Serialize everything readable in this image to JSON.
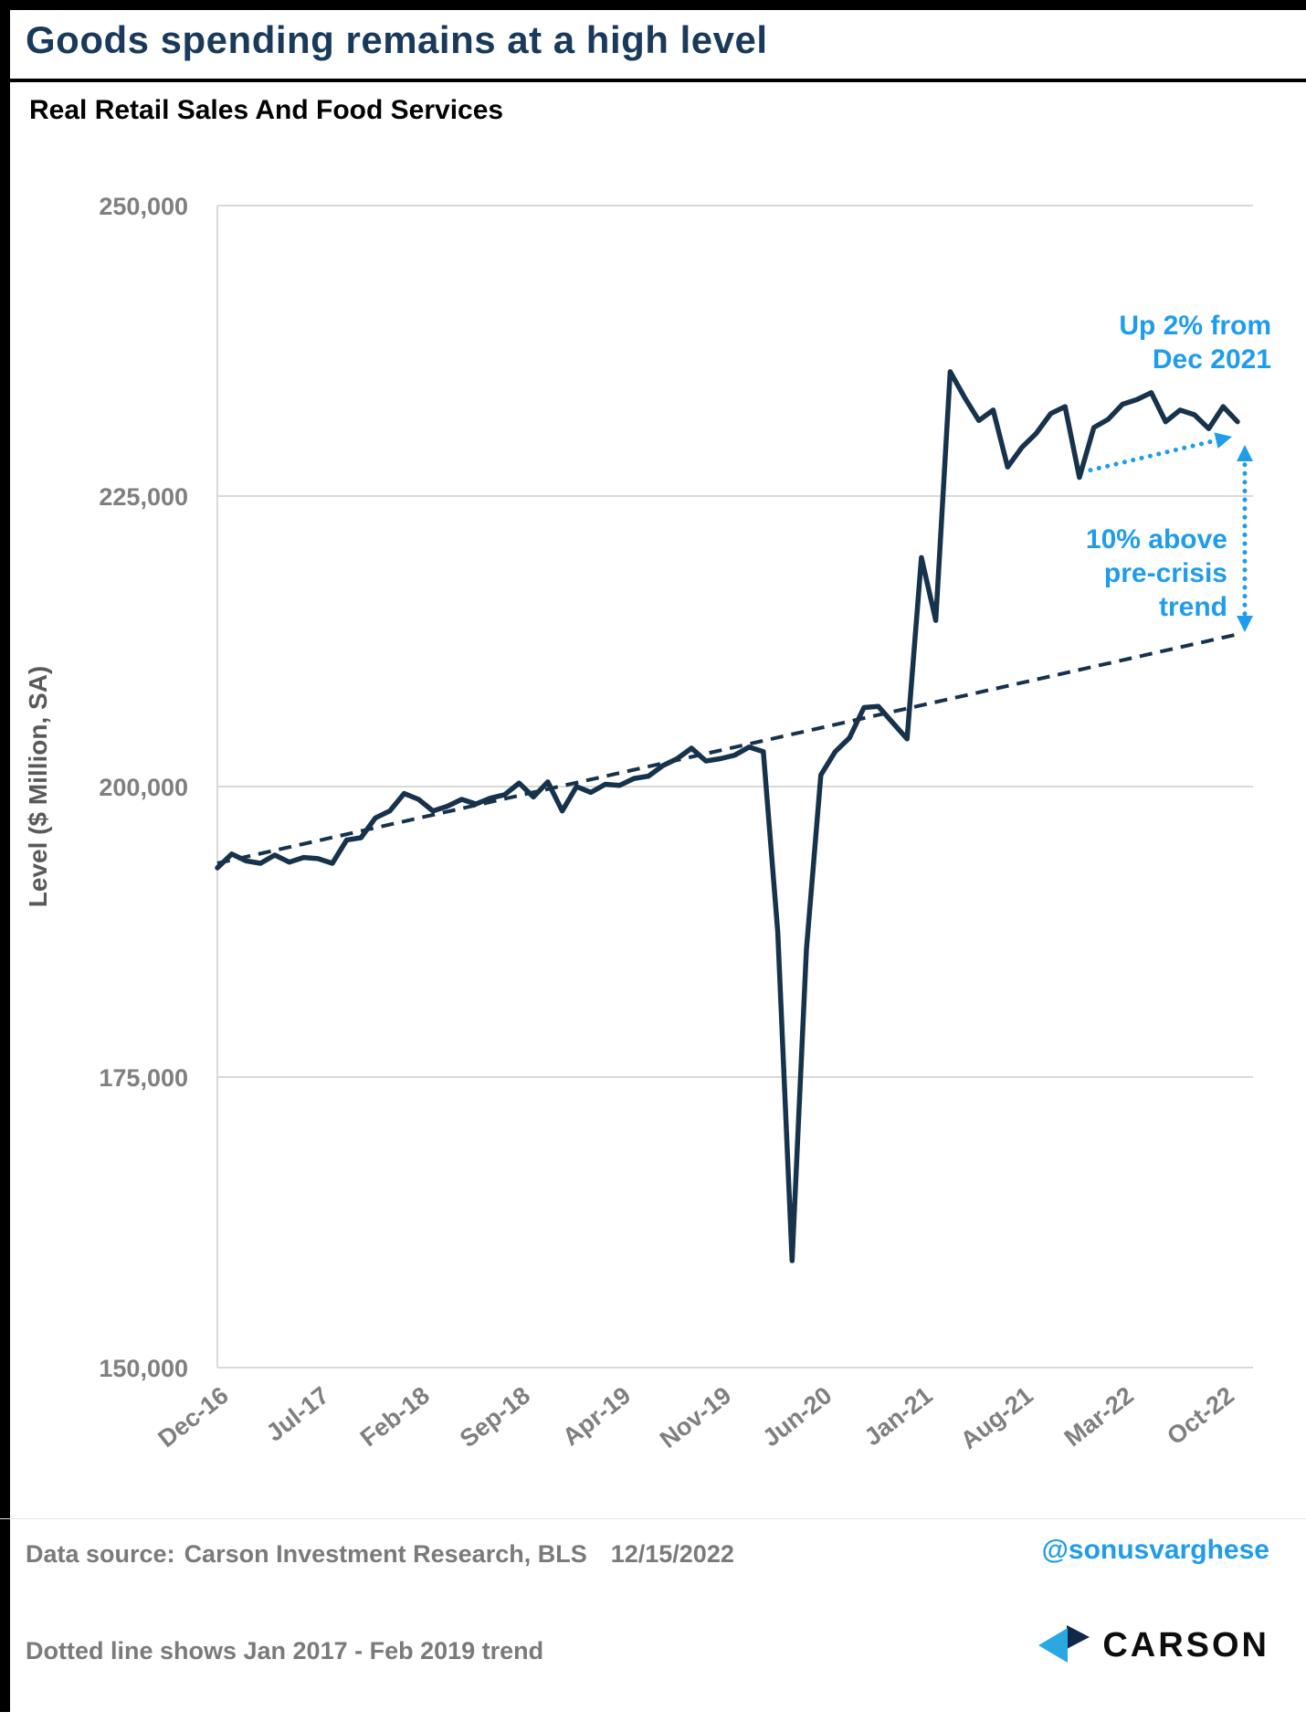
{
  "page": {
    "title": "Goods spending remains at a high level",
    "subtitle": "Real Retail Sales And Food Services"
  },
  "chart_data": {
    "type": "line",
    "title": "Real Retail Sales And Food Services",
    "xlabel": "",
    "ylabel": "Level ($ Million, SA)",
    "ylim": [
      150000,
      250000
    ],
    "grid": "horizontal",
    "frequency": "monthly",
    "ytick_values": [
      250000,
      225000,
      200000,
      175000,
      150000
    ],
    "ytick_labels": [
      "250,000",
      "225,000",
      "200,000",
      "175,000",
      "150,000"
    ],
    "x_tick_labels": [
      "Dec-16",
      "Jul-17",
      "Feb-18",
      "Sep-18",
      "Apr-19",
      "Nov-19",
      "Jun-20",
      "Jan-21",
      "Aug-21",
      "Mar-22",
      "Oct-22"
    ],
    "x_tick_interval_months": 7,
    "series_name": "Real Retail Sales And Food Services",
    "months": [
      "Dec-16",
      "Jan-17",
      "Feb-17",
      "Mar-17",
      "Apr-17",
      "May-17",
      "Jun-17",
      "Jul-17",
      "Aug-17",
      "Sep-17",
      "Oct-17",
      "Nov-17",
      "Dec-17",
      "Jan-18",
      "Feb-18",
      "Mar-18",
      "Apr-18",
      "May-18",
      "Jun-18",
      "Jul-18",
      "Aug-18",
      "Sep-18",
      "Oct-18",
      "Nov-18",
      "Dec-18",
      "Jan-19",
      "Feb-19",
      "Mar-19",
      "Apr-19",
      "May-19",
      "Jun-19",
      "Jul-19",
      "Aug-19",
      "Sep-19",
      "Oct-19",
      "Nov-19",
      "Dec-19",
      "Jan-20",
      "Feb-20",
      "Mar-20",
      "Apr-20",
      "May-20",
      "Jun-20",
      "Jul-20",
      "Aug-20",
      "Sep-20",
      "Oct-20",
      "Nov-20",
      "Dec-20",
      "Jan-21",
      "Feb-21",
      "Mar-21",
      "Apr-21",
      "May-21",
      "Jun-21",
      "Jul-21",
      "Aug-21",
      "Sep-21",
      "Oct-21",
      "Nov-21",
      "Dec-21",
      "Jan-22",
      "Feb-22",
      "Mar-22",
      "Apr-22",
      "May-22",
      "Jun-22",
      "Jul-22",
      "Aug-22",
      "Sep-22",
      "Oct-22",
      "Nov-22"
    ],
    "values": [
      193000,
      194200,
      193600,
      193400,
      194100,
      193500,
      193900,
      193800,
      193400,
      195400,
      195600,
      197300,
      197900,
      199400,
      198900,
      197900,
      198300,
      198900,
      198500,
      199000,
      199300,
      200300,
      199100,
      200400,
      197900,
      200000,
      199500,
      200200,
      200100,
      200700,
      200900,
      201800,
      202400,
      203300,
      202200,
      202400,
      202700,
      203400,
      203000,
      187500,
      159200,
      186000,
      201000,
      203000,
      204200,
      206800,
      206900,
      205500,
      204100,
      219700,
      214300,
      235700,
      233500,
      231500,
      232400,
      227500,
      229200,
      230400,
      232100,
      232700,
      226600,
      230900,
      231600,
      232900,
      233300,
      233900,
      231400,
      232400,
      232000,
      230800,
      232700,
      231400
    ],
    "trend": {
      "name": "Jan 2017 - Feb 2019 trend (extrapolated)",
      "style": "dashed",
      "start_month": "Dec-16",
      "start_value": 193400,
      "end_month": "Nov-22",
      "end_value": 213100
    },
    "annotations": {
      "up2": "Up 2% from Dec 2021",
      "above_trend": "10% above pre-crisis trend"
    }
  },
  "footer": {
    "source_label": "Data source:",
    "source_value": "Carson Investment Research, BLS",
    "date": "12/15/2022",
    "note": "Dotted line shows Jan 2017 - Feb 2019 trend",
    "handle": "@sonusvarghese",
    "logo_text": "CARSON"
  },
  "colors": {
    "line": "#17324B",
    "annotation_blue": "#1F9CEB",
    "grid": "#D9D9D9",
    "axis_text": "#7F7F7F",
    "title_navy": "#1A3A5C",
    "logo_navy": "#12284B",
    "logo_blue": "#29A8E1"
  }
}
